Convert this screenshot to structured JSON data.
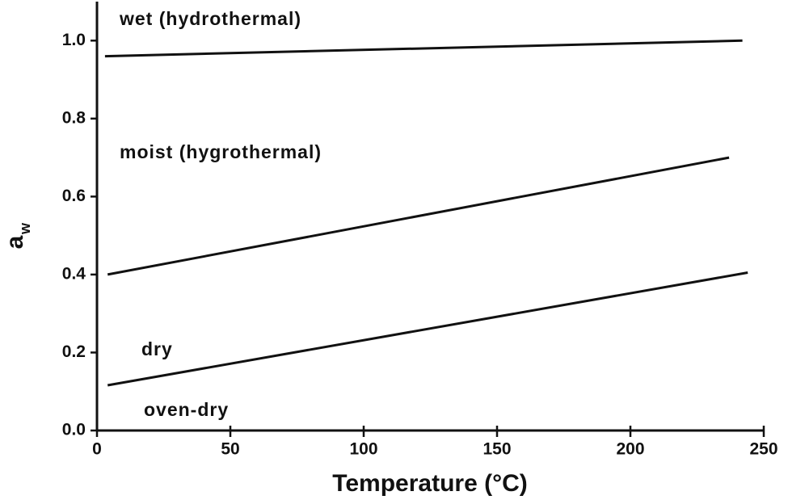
{
  "chart_data": {
    "type": "line",
    "x_label": "Temperature (°C)",
    "y_label": {
      "main": "a",
      "sub": "w"
    },
    "xlim": [
      0,
      250
    ],
    "xticks": [
      0,
      50,
      100,
      150,
      200,
      250
    ],
    "ylim": [
      0,
      1.1
    ],
    "yticks": [
      {
        "value": 0,
        "label": "0.0"
      },
      {
        "value": 0.2,
        "label": "0.2"
      },
      {
        "value": 0.4,
        "label": "0.4"
      },
      {
        "value": 0.6,
        "label": "0.6"
      },
      {
        "value": 0.8,
        "label": "0.8"
      },
      {
        "value": 1,
        "label": "1.0"
      }
    ],
    "color": "#111111",
    "series": [
      {
        "x": [
          3,
          242
        ],
        "values": [
          0.96,
          1.0
        ]
      },
      {
        "x": [
          4,
          237
        ],
        "values": [
          0.4,
          0.7
        ]
      },
      {
        "x": [
          4,
          244
        ],
        "values": [
          0.116,
          0.405
        ]
      }
    ],
    "annotations": [
      "wet (hydrothermal)",
      "moist (hygrothermal)",
      "dry",
      "oven-dry"
    ]
  }
}
